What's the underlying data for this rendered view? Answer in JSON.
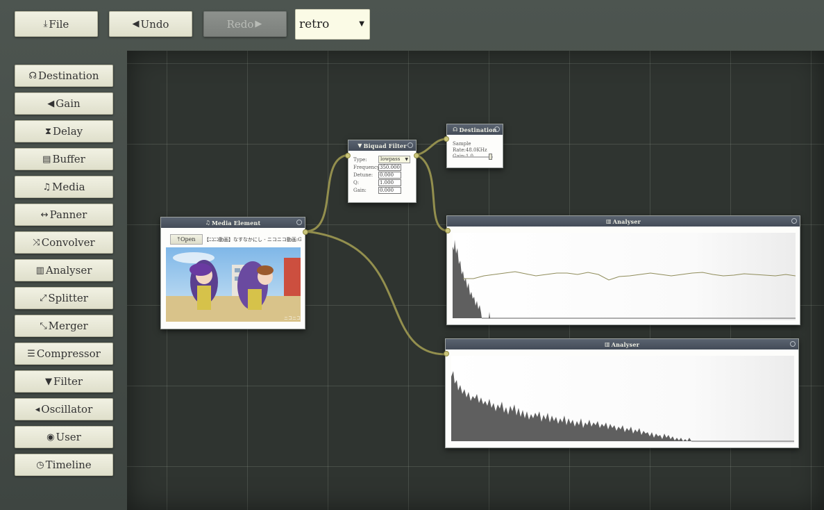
{
  "toolbar": {
    "file_label": "File",
    "undo_label": "Undo",
    "redo_label": "Redo",
    "theme_select": {
      "value": "retro"
    }
  },
  "sidebar": {
    "items": [
      {
        "label": "Destination",
        "icon": "headphones-icon"
      },
      {
        "label": "Gain",
        "icon": "volume-icon"
      },
      {
        "label": "Delay",
        "icon": "hourglass-icon"
      },
      {
        "label": "Buffer",
        "icon": "film-icon"
      },
      {
        "label": "Media",
        "icon": "music-note-icon"
      },
      {
        "label": "Panner",
        "icon": "left-right-arrow-icon"
      },
      {
        "label": "Convolver",
        "icon": "shuffle-icon"
      },
      {
        "label": "Analyser",
        "icon": "bar-chart-icon"
      },
      {
        "label": "Splitter",
        "icon": "expand-icon"
      },
      {
        "label": "Merger",
        "icon": "collapse-icon"
      },
      {
        "label": "Compressor",
        "icon": "compress-icon"
      },
      {
        "label": "Filter",
        "icon": "funnel-icon"
      },
      {
        "label": "Oscillator",
        "icon": "megaphone-icon"
      },
      {
        "label": "User",
        "icon": "record-icon"
      },
      {
        "label": "Timeline",
        "icon": "clock-icon"
      }
    ]
  },
  "nodes": {
    "media": {
      "title": "Media Element",
      "open_label": "Open",
      "media_title": "【ﾆｺﾆｺ動画】なすなかにし - ニコニコ動画:G..."
    },
    "biquad": {
      "title": "Biquad Filter",
      "type_label": "Type:",
      "type_value": "lowpass",
      "frequency_label": "Frequency:",
      "frequency_value": "350.000",
      "detune_label": "Detune:",
      "detune_value": "0.000",
      "q_label": "Q:",
      "q_value": "1.000",
      "gain_label": "Gain:",
      "gain_value": "0.000"
    },
    "destination": {
      "title": "Destination",
      "sample_rate": "Sample Rate:48.0KHz",
      "gain": "Gain:1.0",
      "gain_slider_fraction": 0.95
    },
    "analyser1": {
      "title": "Analyser"
    },
    "analyser2": {
      "title": "Analyser"
    }
  },
  "colors": {
    "wire": "#938f4e",
    "port": "#c9c47a",
    "node_header": "#4c5460",
    "spectrum": "#5f5f5f"
  }
}
